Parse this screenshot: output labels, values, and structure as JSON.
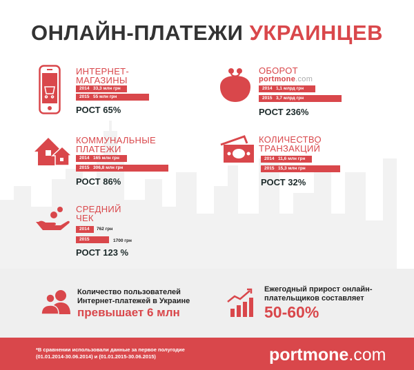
{
  "title": {
    "part1": "ОНЛАЙН-ПЛАТЕЖИ",
    "part2": "УКРАИНЦЕВ"
  },
  "sections": [
    {
      "title1": "ИНТЕРНЕТ-",
      "title2": "МАГАЗИНЫ",
      "bars": [
        {
          "year": "2014",
          "value": "33,3 млн грн"
        },
        {
          "year": "2015",
          "value": "55 млн грн"
        }
      ],
      "growth": "РОСТ 65%"
    },
    {
      "title1": "ОБОРОТ",
      "brand_bold": "portmone",
      "brand_light": ".com",
      "bars": [
        {
          "year": "2014",
          "value": "1,1 млрд грн"
        },
        {
          "year": "2015",
          "value": "3,7 млрд грн"
        }
      ],
      "growth": "РОСТ 236%"
    },
    {
      "title1": "КОММУНАЛЬНЫЕ",
      "title2": "ПЛАТЕЖИ",
      "bars": [
        {
          "year": "2014",
          "value": "165  млн грн"
        },
        {
          "year": "2015",
          "value": "306,8 млн грн"
        }
      ],
      "growth": "РОСТ 86%"
    },
    {
      "title1": "КОЛИЧЕСТВО",
      "title2": "ТРАНЗАКЦИЙ",
      "bars": [
        {
          "year": "2014",
          "value": "11,6 млн грн"
        },
        {
          "year": "2015",
          "value": "15,3 млн грн"
        }
      ],
      "growth": "РОСТ 32%"
    },
    {
      "title1": "СРЕДНИЙ",
      "title2": "ЧЕК",
      "bars": [
        {
          "year": "2014",
          "value": "762 грн"
        },
        {
          "year": "2015",
          "value": "1700 грн"
        }
      ],
      "growth": "РОСТ 123 %"
    }
  ],
  "bottom": {
    "users": {
      "line1": "Количество пользователей",
      "line2": "Интернет-платежей в Украине",
      "big": "превышает 6 млн"
    },
    "growth": {
      "line1": "Ежегодный прирост онлайн-",
      "line2": "плательщиков составляет",
      "big": "50-60%"
    }
  },
  "footer": {
    "note1": "*В сравнении использовали данные за первое полугодие",
    "note2": "(01.01.2014-30.06.2014) и  (01.01.2015-30.06.2015)",
    "logo_bold": "portmone",
    "logo_light": ".com"
  },
  "colors": {
    "accent": "#d9474b",
    "band": "#efefef"
  }
}
